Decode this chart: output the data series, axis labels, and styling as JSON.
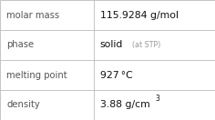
{
  "rows": [
    {
      "label": "molar mass",
      "value": "115.9284 g/mol",
      "suffix": null,
      "superscript": null
    },
    {
      "label": "phase",
      "value": "solid",
      "suffix": " (at STP)",
      "superscript": null
    },
    {
      "label": "melting point",
      "value": "927 °C",
      "suffix": null,
      "superscript": null
    },
    {
      "label": "density",
      "value": "3.88 g/cm",
      "suffix": null,
      "superscript": "3"
    }
  ],
  "n_rows": 4,
  "col_split": 0.435,
  "bg_color": "#ffffff",
  "border_color": "#bbbbbb",
  "label_color": "#555555",
  "value_color": "#111111",
  "suffix_color": "#999999",
  "label_fontsize": 7.2,
  "value_fontsize": 7.8,
  "suffix_fontsize": 5.8,
  "super_fontsize": 5.5,
  "font_family": "DejaVu Sans"
}
